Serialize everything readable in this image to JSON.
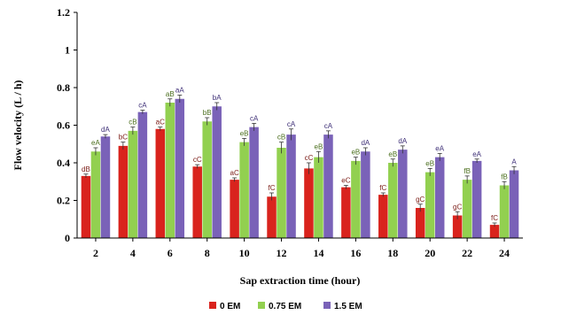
{
  "chart_data": {
    "type": "bar",
    "xlabel": "Sap extraction time (hour)",
    "ylabel": "Flow velocity (L / h)",
    "ylim": [
      0,
      1.2
    ],
    "yticks": [
      "0",
      "0.2",
      "0.4",
      "0.6",
      "0.8",
      "1",
      "1.2"
    ],
    "categories": [
      "2",
      "4",
      "6",
      "8",
      "10",
      "12",
      "14",
      "16",
      "18",
      "20",
      "22",
      "24"
    ],
    "grid": false,
    "legend_position": "bottom",
    "series": [
      {
        "name": "0 EM",
        "color": "#d9231d",
        "values": [
          0.33,
          0.49,
          0.58,
          0.38,
          0.31,
          0.22,
          0.37,
          0.27,
          0.23,
          0.16,
          0.12,
          0.07
        ],
        "errors": [
          0.01,
          0.02,
          0.01,
          0.01,
          0.01,
          0.02,
          0.03,
          0.01,
          0.01,
          0.02,
          0.02,
          0.01
        ],
        "labels": [
          "dB",
          "bC",
          "aC",
          "cC",
          "aC",
          "fC",
          "cC",
          "eC",
          "fC",
          "gC",
          "gC",
          "fC"
        ]
      },
      {
        "name": "0.75 EM",
        "color": "#92d050",
        "values": [
          0.46,
          0.57,
          0.72,
          0.62,
          0.51,
          0.48,
          0.43,
          0.41,
          0.4,
          0.35,
          0.31,
          0.28
        ],
        "errors": [
          0.02,
          0.02,
          0.02,
          0.02,
          0.02,
          0.03,
          0.03,
          0.02,
          0.02,
          0.02,
          0.02,
          0.02
        ],
        "labels": [
          "eA",
          "cB",
          "aB",
          "bB",
          "eB",
          "cB",
          "eB",
          "eB",
          "eB",
          "eB",
          "fB",
          "fB"
        ]
      },
      {
        "name": "1.5 EM",
        "color": "#7a62b8",
        "values": [
          0.54,
          0.67,
          0.74,
          0.7,
          0.59,
          0.55,
          0.55,
          0.46,
          0.47,
          0.43,
          0.41,
          0.36
        ],
        "errors": [
          0.01,
          0.01,
          0.02,
          0.02,
          0.02,
          0.03,
          0.02,
          0.02,
          0.02,
          0.02,
          0.01,
          0.02
        ],
        "labels": [
          "dA",
          "cA",
          "aA",
          "bA",
          "cA",
          "cA",
          "cA",
          "dA",
          "dA",
          "eA",
          "eA",
          "A"
        ]
      }
    ]
  }
}
